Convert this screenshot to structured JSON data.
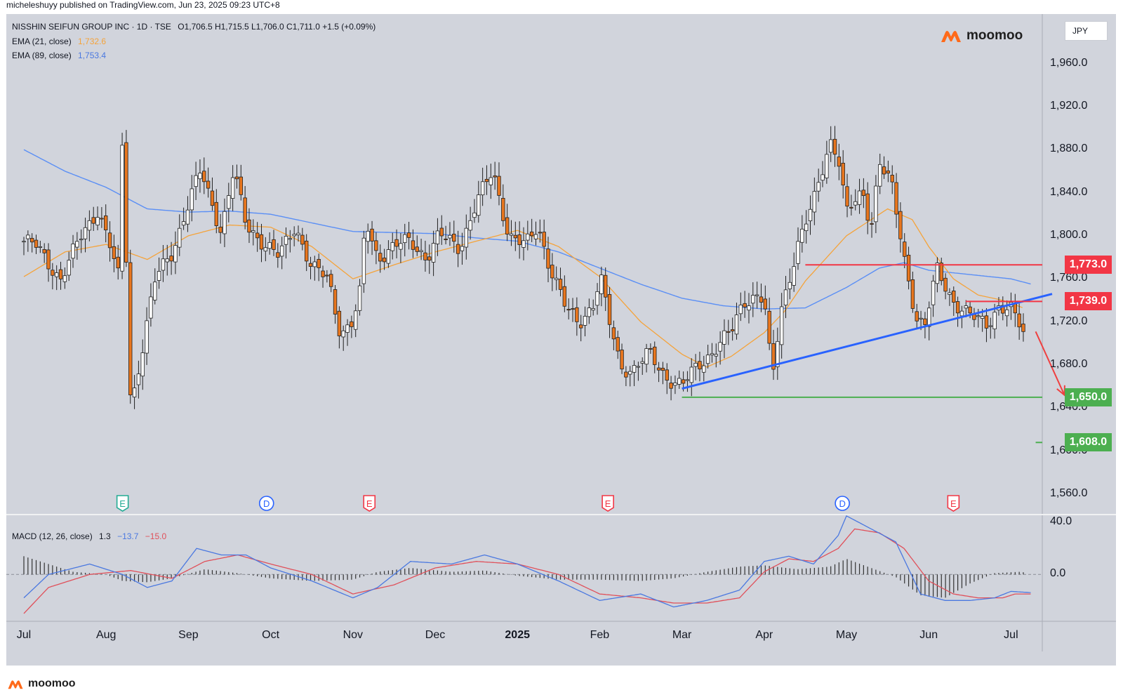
{
  "publisher_line": "micheleshuyy published on TradingView.com, Jun 23, 2025 09:23 UTC+8",
  "legend": {
    "symbol": "NISSHIN SEIFUN GROUP INC · 1D · TSE",
    "ohlc": "O1,706.5  H1,715.5  L1,706.0  C1,711.0  +1.5 (+0.09%)",
    "ema21_label": "EMA (21, close)",
    "ema21_value": "1,732.6",
    "ema89_label": "EMA (89, close)",
    "ema89_value": "1,753.4"
  },
  "brand": {
    "name": "moomoo",
    "icon": "moomoo-logo-icon"
  },
  "currency": "JPY",
  "colors": {
    "up_candle": "#ffffff",
    "down_candle": "#e8761e",
    "candle_outline": "#202020",
    "ema21": "#f5a33a",
    "ema89": "#5b8ff5",
    "trendline": "#2962ff",
    "resistance": "#f23645",
    "support": "#4caf50",
    "macd_line": "#4a78e0",
    "signal_line": "#e0505a",
    "histogram": "#333333"
  },
  "price_tags": [
    {
      "label": "1,773.0",
      "value": 1773.0,
      "color": "#f23645",
      "type": "resistance"
    },
    {
      "label": "1,739.0",
      "value": 1739.0,
      "color": "#f23645",
      "type": "resistance"
    },
    {
      "label": "1,650.0",
      "value": 1650.0,
      "color": "#4caf50",
      "type": "support"
    },
    {
      "label": "1,608.0",
      "value": 1608.0,
      "color": "#4caf50",
      "type": "support"
    }
  ],
  "events": [
    {
      "letter": "E",
      "kind": "earnings",
      "month_pos": 1.2
    },
    {
      "letter": "D",
      "kind": "dividend",
      "month_pos": 2.95
    },
    {
      "letter": "E",
      "kind": "earnings",
      "month_pos": 4.2
    },
    {
      "letter": "E",
      "kind": "earnings",
      "month_pos": 7.1
    },
    {
      "letter": "D",
      "kind": "dividend",
      "month_pos": 9.95
    },
    {
      "letter": "E",
      "kind": "earnings",
      "month_pos": 11.3
    }
  ],
  "macd_legend": {
    "label": "MACD (12, 26, close)",
    "hist": "1.3",
    "macd": "−13.7",
    "signal": "−15.0"
  },
  "chart_data": [
    {
      "type": "candlestick",
      "title": "NISSHIN SEIFUN GROUP INC · 1D · TSE",
      "x_months": [
        "Jul",
        "Aug",
        "Sep",
        "Oct",
        "Nov",
        "Dec",
        "2025",
        "Feb",
        "Mar",
        "Apr",
        "May",
        "Jun",
        "Jul"
      ],
      "y_ticks": [
        "1,560.0",
        "1,600.0",
        "1,640.0",
        "1,680.0",
        "1,720.0",
        "1,760.0",
        "1,800.0",
        "1,840.0",
        "1,880.0",
        "1,920.0",
        "1,960.0"
      ],
      "y_tick_values": [
        1560,
        1600,
        1640,
        1680,
        1720,
        1760,
        1800,
        1840,
        1880,
        1920,
        1960
      ],
      "ylim": [
        1541,
        2006
      ],
      "close_anchors": [
        [
          0,
          1795
        ],
        [
          0.15,
          1790
        ],
        [
          0.45,
          1760
        ],
        [
          0.7,
          1800
        ],
        [
          0.9,
          1825
        ],
        [
          1.05,
          1790
        ],
        [
          1.15,
          1760
        ],
        [
          1.2,
          1895
        ],
        [
          1.3,
          1640
        ],
        [
          1.45,
          1700
        ],
        [
          1.6,
          1760
        ],
        [
          1.8,
          1785
        ],
        [
          2.0,
          1830
        ],
        [
          2.15,
          1860
        ],
        [
          2.4,
          1805
        ],
        [
          2.55,
          1860
        ],
        [
          2.7,
          1810
        ],
        [
          2.9,
          1795
        ],
        [
          3.1,
          1780
        ],
        [
          3.3,
          1810
        ],
        [
          3.5,
          1770
        ],
        [
          3.7,
          1760
        ],
        [
          3.85,
          1710
        ],
        [
          4.0,
          1720
        ],
        [
          4.1,
          1750
        ],
        [
          4.15,
          1815
        ],
        [
          4.3,
          1780
        ],
        [
          4.5,
          1790
        ],
        [
          4.7,
          1795
        ],
        [
          4.9,
          1780
        ],
        [
          5.05,
          1800
        ],
        [
          5.3,
          1790
        ],
        [
          5.5,
          1830
        ],
        [
          5.7,
          1860
        ],
        [
          5.9,
          1800
        ],
        [
          6.1,
          1790
        ],
        [
          6.25,
          1810
        ],
        [
          6.4,
          1770
        ],
        [
          6.6,
          1730
        ],
        [
          6.75,
          1720
        ],
        [
          6.95,
          1740
        ],
        [
          7.0,
          1765
        ],
        [
          7.1,
          1725
        ],
        [
          7.25,
          1680
        ],
        [
          7.4,
          1675
        ],
        [
          7.6,
          1690
        ],
        [
          7.8,
          1670
        ],
        [
          8.0,
          1660
        ],
        [
          8.2,
          1680
        ],
        [
          8.4,
          1695
        ],
        [
          8.6,
          1710
        ],
        [
          8.75,
          1740
        ],
        [
          8.9,
          1745
        ],
        [
          9.0,
          1740
        ],
        [
          9.05,
          1700
        ],
        [
          9.1,
          1665
        ],
        [
          9.2,
          1730
        ],
        [
          9.4,
          1790
        ],
        [
          9.6,
          1830
        ],
        [
          9.8,
          1890
        ],
        [
          9.9,
          1875
        ],
        [
          10.0,
          1820
        ],
        [
          10.2,
          1840
        ],
        [
          10.3,
          1810
        ],
        [
          10.4,
          1870
        ],
        [
          10.55,
          1845
        ],
        [
          10.7,
          1780
        ],
        [
          10.85,
          1725
        ],
        [
          10.95,
          1715
        ],
        [
          11.1,
          1768
        ],
        [
          11.3,
          1740
        ],
        [
          11.5,
          1725
        ],
        [
          11.7,
          1718
        ],
        [
          11.85,
          1735
        ],
        [
          12.0,
          1730
        ],
        [
          12.15,
          1711
        ]
      ],
      "ema21_anchors": [
        [
          0,
          1762
        ],
        [
          0.5,
          1785
        ],
        [
          1.0,
          1792
        ],
        [
          1.5,
          1778
        ],
        [
          2.0,
          1800
        ],
        [
          2.5,
          1810
        ],
        [
          3.0,
          1808
        ],
        [
          3.5,
          1790
        ],
        [
          4.0,
          1760
        ],
        [
          4.5,
          1773
        ],
        [
          5.0,
          1785
        ],
        [
          5.5,
          1795
        ],
        [
          6.0,
          1805
        ],
        [
          6.5,
          1790
        ],
        [
          7.0,
          1762
        ],
        [
          7.5,
          1720
        ],
        [
          8.0,
          1690
        ],
        [
          8.3,
          1678
        ],
        [
          8.6,
          1688
        ],
        [
          9.0,
          1710
        ],
        [
          9.25,
          1730
        ],
        [
          9.5,
          1758
        ],
        [
          10.0,
          1800
        ],
        [
          10.5,
          1825
        ],
        [
          10.8,
          1815
        ],
        [
          11.0,
          1790
        ],
        [
          11.3,
          1760
        ],
        [
          11.6,
          1745
        ],
        [
          11.9,
          1740
        ],
        [
          12.15,
          1733
        ]
      ],
      "ema89_anchors": [
        [
          0,
          1880
        ],
        [
          0.5,
          1860
        ],
        [
          1.0,
          1845
        ],
        [
          1.5,
          1825
        ],
        [
          2.0,
          1822
        ],
        [
          2.5,
          1823
        ],
        [
          3.0,
          1820
        ],
        [
          3.5,
          1812
        ],
        [
          4.0,
          1804
        ],
        [
          4.5,
          1803
        ],
        [
          5.0,
          1802
        ],
        [
          5.5,
          1798
        ],
        [
          6.0,
          1795
        ],
        [
          6.5,
          1785
        ],
        [
          7.0,
          1770
        ],
        [
          7.5,
          1755
        ],
        [
          8.0,
          1742
        ],
        [
          8.5,
          1735
        ],
        [
          9.0,
          1732
        ],
        [
          9.5,
          1733
        ],
        [
          10.0,
          1752
        ],
        [
          10.4,
          1770
        ],
        [
          10.7,
          1775
        ],
        [
          11.0,
          1768
        ],
        [
          11.5,
          1764
        ],
        [
          12.0,
          1760
        ],
        [
          12.25,
          1755
        ]
      ],
      "trendline": {
        "from": [
          8.0,
          1658
        ],
        "to": [
          12.5,
          1746
        ]
      },
      "resistance_lines": [
        {
          "value": 1773.0,
          "from": 9.5
        },
        {
          "value": 1739.0,
          "from": 11.45
        }
      ],
      "support_lines": [
        {
          "value": 1650.0,
          "from": 8.0
        },
        {
          "value": 1608.0,
          "from": 12.3
        }
      ],
      "projection_arrow": {
        "from": [
          12.3,
          1711
        ],
        "to": [
          12.65,
          1652
        ]
      }
    },
    {
      "type": "line",
      "title": "MACD (12, 26, close)",
      "y_ticks": [
        "0.0",
        "40.0"
      ],
      "y_tick_values": [
        0,
        40
      ],
      "ylim": [
        -36,
        46
      ],
      "series": [
        {
          "name": "MACD",
          "anchors": [
            [
              0,
              -18
            ],
            [
              0.3,
              0
            ],
            [
              0.8,
              8
            ],
            [
              1.2,
              0
            ],
            [
              1.5,
              -10
            ],
            [
              1.8,
              -5
            ],
            [
              2.1,
              20
            ],
            [
              2.4,
              15
            ],
            [
              2.7,
              15
            ],
            [
              3.0,
              5
            ],
            [
              3.5,
              -5
            ],
            [
              4.0,
              -18
            ],
            [
              4.3,
              -10
            ],
            [
              4.7,
              10
            ],
            [
              5.2,
              8
            ],
            [
              5.6,
              15
            ],
            [
              6.0,
              8
            ],
            [
              6.5,
              -5
            ],
            [
              7.0,
              -20
            ],
            [
              7.5,
              -15
            ],
            [
              7.9,
              -25
            ],
            [
              8.3,
              -20
            ],
            [
              8.7,
              -12
            ],
            [
              9.0,
              10
            ],
            [
              9.3,
              14
            ],
            [
              9.6,
              8
            ],
            [
              9.9,
              30
            ],
            [
              10.0,
              45
            ],
            [
              10.3,
              35
            ],
            [
              10.6,
              25
            ],
            [
              10.9,
              -15
            ],
            [
              11.2,
              -20
            ],
            [
              11.5,
              -20
            ],
            [
              11.8,
              -18
            ],
            [
              12.0,
              -13
            ],
            [
              12.25,
              -14
            ]
          ]
        },
        {
          "name": "Signal",
          "anchors": [
            [
              0,
              -30
            ],
            [
              0.3,
              -10
            ],
            [
              0.8,
              0
            ],
            [
              1.3,
              3
            ],
            [
              1.8,
              -3
            ],
            [
              2.2,
              10
            ],
            [
              2.6,
              15
            ],
            [
              3.0,
              8
            ],
            [
              3.5,
              0
            ],
            [
              4.0,
              -15
            ],
            [
              4.5,
              -8
            ],
            [
              5.0,
              5
            ],
            [
              5.5,
              10
            ],
            [
              6.0,
              8
            ],
            [
              6.5,
              0
            ],
            [
              7.0,
              -15
            ],
            [
              7.5,
              -18
            ],
            [
              7.9,
              -22
            ],
            [
              8.3,
              -22
            ],
            [
              8.7,
              -18
            ],
            [
              9.0,
              2
            ],
            [
              9.3,
              12
            ],
            [
              9.6,
              10
            ],
            [
              9.9,
              20
            ],
            [
              10.1,
              35
            ],
            [
              10.4,
              32
            ],
            [
              10.7,
              20
            ],
            [
              11.0,
              -5
            ],
            [
              11.3,
              -15
            ],
            [
              11.6,
              -18
            ],
            [
              11.9,
              -18
            ],
            [
              12.05,
              -15
            ],
            [
              12.25,
              -15
            ]
          ]
        },
        {
          "name": "Histogram",
          "anchors": [
            [
              0,
              14
            ],
            [
              0.3,
              8
            ],
            [
              0.6,
              2
            ],
            [
              1.0,
              0
            ],
            [
              1.2,
              -5
            ],
            [
              1.5,
              -6
            ],
            [
              1.8,
              -3
            ],
            [
              2.2,
              4
            ],
            [
              2.6,
              1
            ],
            [
              3.0,
              -3
            ],
            [
              3.5,
              -5
            ],
            [
              4.0,
              -4
            ],
            [
              4.3,
              2
            ],
            [
              4.7,
              5
            ],
            [
              5.2,
              2
            ],
            [
              5.6,
              3
            ],
            [
              6.0,
              -1
            ],
            [
              6.5,
              -4
            ],
            [
              7.0,
              -4
            ],
            [
              7.5,
              -5
            ],
            [
              7.9,
              -3
            ],
            [
              8.3,
              2
            ],
            [
              8.7,
              6
            ],
            [
              9.0,
              7
            ],
            [
              9.4,
              4
            ],
            [
              9.8,
              6
            ],
            [
              10.0,
              12
            ],
            [
              10.3,
              5
            ],
            [
              10.6,
              -2
            ],
            [
              10.9,
              -16
            ],
            [
              11.2,
              -18
            ],
            [
              11.5,
              -7
            ],
            [
              11.8,
              1
            ],
            [
              12.1,
              2
            ],
            [
              12.25,
              1
            ]
          ]
        }
      ]
    }
  ]
}
